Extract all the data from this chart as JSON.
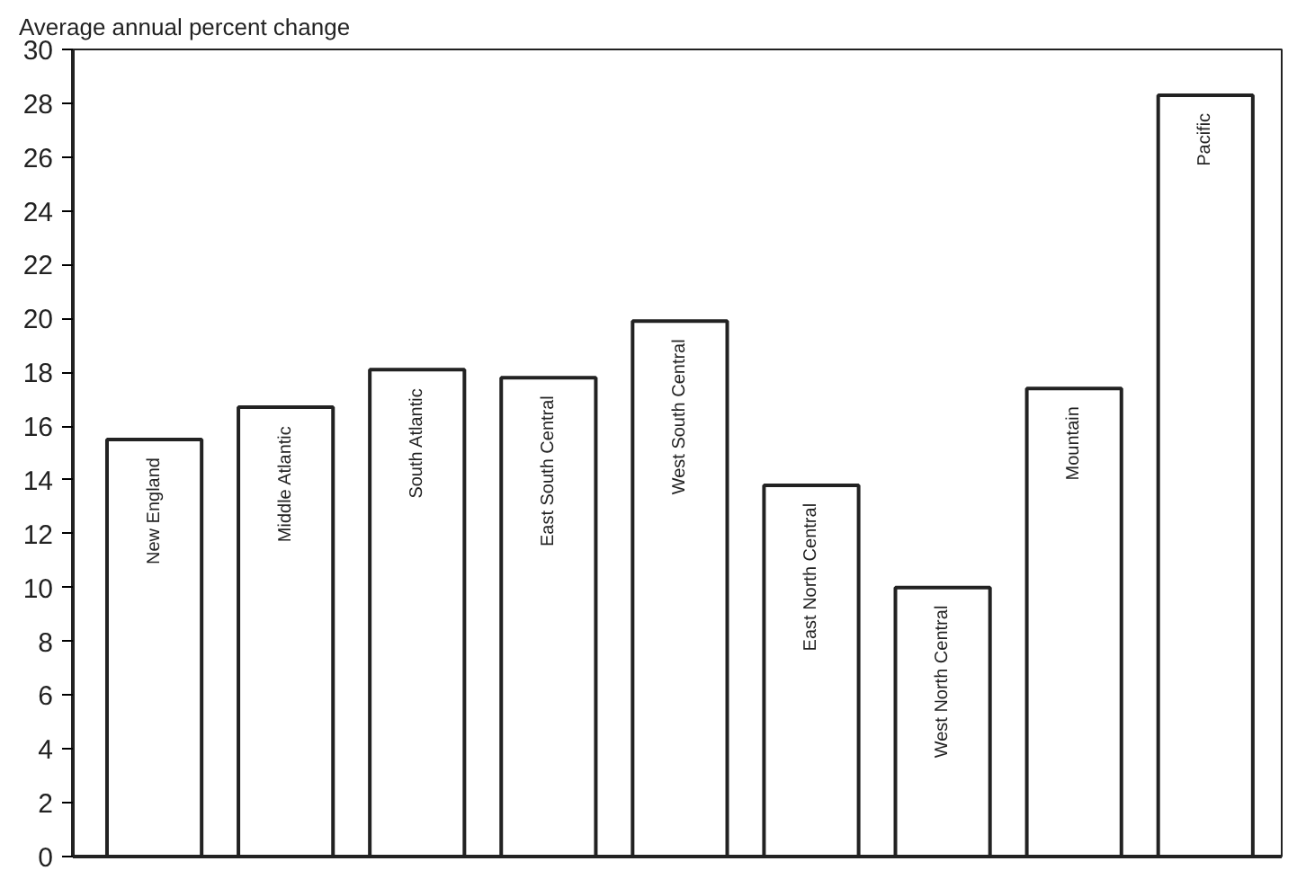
{
  "chart_data": {
    "type": "bar",
    "ylabel": "Average annual percent change",
    "categories": [
      "New England",
      "Middle Atlantic",
      "South Atlantic",
      "East South Central",
      "West South Central",
      "East North Central",
      "West North Central",
      "Mountain",
      "Pacific"
    ],
    "values": [
      15.5,
      16.7,
      18.1,
      17.8,
      19.9,
      13.8,
      10.0,
      17.4,
      28.3
    ],
    "color": "#ffffff",
    "ylim": [
      0,
      30
    ],
    "yticks": [
      0,
      2,
      4,
      6,
      8,
      10,
      12,
      14,
      16,
      18,
      20,
      22,
      24,
      26,
      28,
      30
    ],
    "grid": false,
    "tick_labels": "y"
  }
}
